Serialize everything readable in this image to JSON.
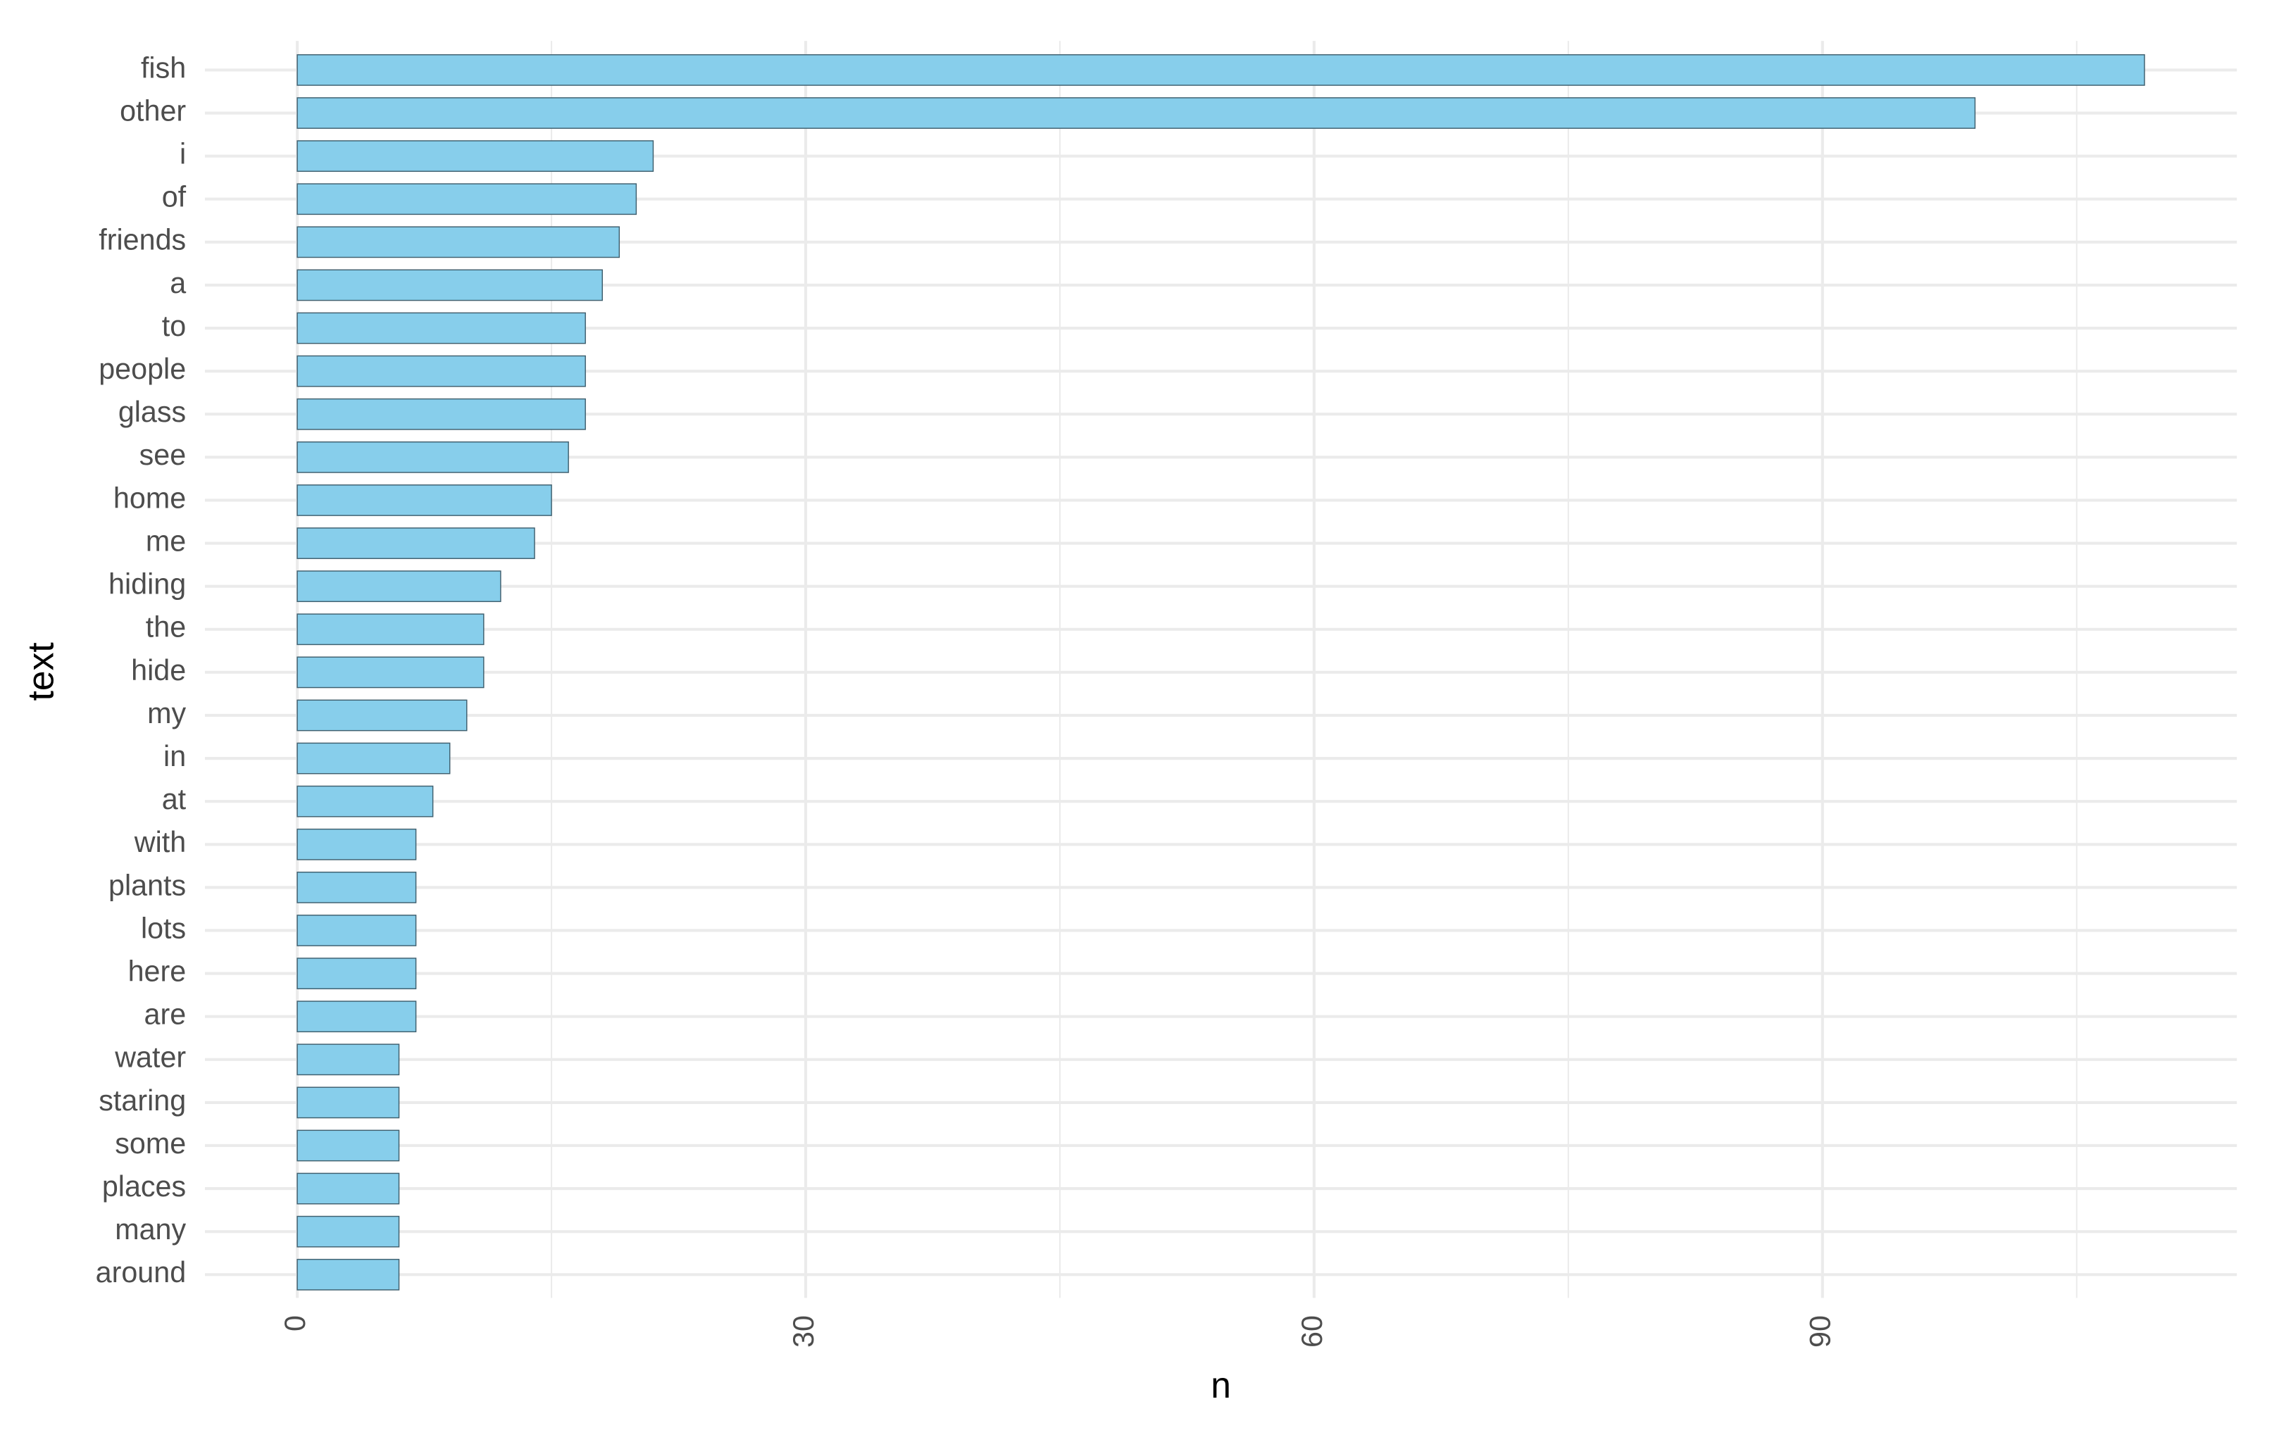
{
  "chart_data": {
    "type": "hbar",
    "x_label": "n",
    "y_label": "text",
    "categories": [
      "fish",
      "other",
      "i",
      "of",
      "friends",
      "a",
      "to",
      "people",
      "glass",
      "see",
      "home",
      "me",
      "hiding",
      "the",
      "hide",
      "my",
      "in",
      "at",
      "with",
      "plants",
      "lots",
      "here",
      "are",
      "water",
      "staring",
      "some",
      "places",
      "many",
      "around"
    ],
    "values": [
      109,
      99,
      21,
      20,
      19,
      18,
      17,
      17,
      17,
      16,
      15,
      14,
      12,
      11,
      11,
      10,
      9,
      8,
      7,
      7,
      7,
      7,
      7,
      6,
      6,
      6,
      6,
      6,
      6
    ],
    "color": "#87ceeb",
    "xlim": [
      -5.45,
      114.45
    ],
    "xticks": [
      0,
      30,
      60,
      90
    ],
    "x_minor_grid": [
      15,
      45,
      75,
      105
    ],
    "grid": true
  }
}
